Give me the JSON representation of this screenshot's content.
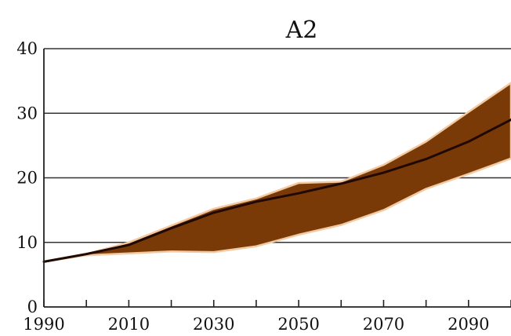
{
  "chart_data": {
    "type": "area",
    "title": "A2",
    "xlabel": "",
    "ylabel": "",
    "xlim": [
      1990,
      2100
    ],
    "ylim": [
      0,
      40
    ],
    "x_ticks": [
      1990,
      2000,
      2010,
      2020,
      2030,
      2040,
      2050,
      2060,
      2070,
      2080,
      2090,
      2100
    ],
    "x_tick_labels": [
      "1990",
      "2010",
      "2030",
      "2050",
      "2070",
      "2090"
    ],
    "y_ticks": [
      0,
      10,
      20,
      30,
      40
    ],
    "gridlines_y": [
      10,
      20,
      30,
      40
    ],
    "grid": true,
    "band": {
      "x": [
        1990,
        2000,
        2010,
        2020,
        2030,
        2040,
        2050,
        2060,
        2070,
        2080,
        2090,
        2100
      ],
      "upper": [
        7.0,
        8.2,
        10.0,
        12.6,
        15.2,
        16.8,
        19.2,
        19.4,
        22.0,
        25.6,
        30.2,
        34.7
      ],
      "lower": [
        7.0,
        8.0,
        8.3,
        8.6,
        8.5,
        9.4,
        11.2,
        12.7,
        15.0,
        18.3,
        20.6,
        23.0
      ],
      "color": "#7a3a08",
      "edge_color": "#f2c9a0"
    },
    "series": [
      {
        "x": [
          1990,
          2000,
          2010,
          2020,
          2030,
          2040,
          2050,
          2060,
          2070,
          2080,
          2090,
          2100
        ],
        "values": [
          7.0,
          8.2,
          9.6,
          12.2,
          14.6,
          16.3,
          17.6,
          19.1,
          20.8,
          22.9,
          25.6,
          29.0
        ],
        "color": "#200803"
      }
    ],
    "legend": "none"
  }
}
